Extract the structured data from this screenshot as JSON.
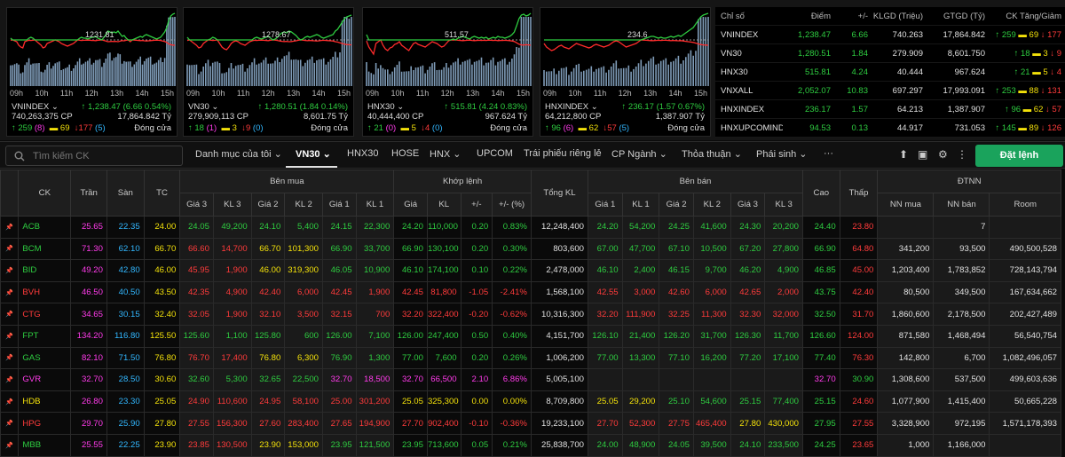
{
  "charts": [
    {
      "name": "VNINDEX",
      "ref_label": "1231.81",
      "line_color": "#ff2b2b",
      "points": [
        34,
        36,
        37,
        38,
        42,
        44,
        45,
        38,
        37,
        34,
        33,
        34,
        36,
        38,
        40,
        42,
        45,
        44,
        40,
        39,
        38,
        37,
        36,
        37,
        38,
        40,
        41,
        42,
        43,
        42,
        41,
        40,
        38,
        36,
        34,
        33,
        34,
        34,
        35,
        34,
        33,
        33,
        32,
        34,
        35,
        36,
        33,
        30,
        26,
        27,
        28,
        27,
        28,
        26,
        29,
        32,
        31,
        34,
        36,
        38,
        36,
        35,
        34,
        33,
        32,
        33,
        31,
        30,
        31,
        32,
        33,
        34,
        35,
        34,
        33,
        30,
        27,
        22,
        14,
        9,
        7,
        6
      ],
      "index": "VNINDEX",
      "vol": "740,263,375 CP",
      "change": "1,238.47 (6.66 0.54%)",
      "value": "17,864.842 Tỷ",
      "up": "259",
      "up_c": "(8)",
      "ref": "69",
      "down": "177",
      "down_c": "(5)",
      "status": "Đóng cửa"
    },
    {
      "name": "VN30",
      "ref_label": "1278.67",
      "line_color": "#ff2b2b",
      "points": [
        33,
        36,
        38,
        40,
        42,
        45,
        44,
        40,
        38,
        36,
        35,
        33,
        34,
        36,
        40,
        44,
        46,
        47,
        44,
        40,
        38,
        37,
        38,
        40,
        41,
        42,
        40,
        38,
        37,
        34,
        33,
        34,
        35,
        34,
        33,
        32,
        34,
        36,
        35,
        33,
        30,
        28,
        27,
        28,
        26,
        27,
        29,
        31,
        34,
        36,
        35,
        33,
        32,
        33,
        32,
        31,
        30,
        31,
        33,
        34,
        33,
        32,
        31,
        30,
        26,
        24,
        20,
        16,
        12,
        10,
        9,
        8
      ],
      "index": "VN30",
      "vol": "279,909,113 CP",
      "change": "1,280.51 (1.84 0.14%)",
      "value": "8,601.75 Tỷ",
      "up": "18",
      "up_c": "(1)",
      "ref": "3",
      "down": "9",
      "down_c": "(0)",
      "status": "Đóng cửa"
    },
    {
      "name": "HNX30",
      "ref_label": "511.57",
      "line_color": "#ff2b2b",
      "points": [
        30,
        44,
        48,
        52,
        40,
        38,
        36,
        42,
        46,
        48,
        45,
        44,
        41,
        40,
        38,
        42,
        44,
        46,
        48,
        44,
        40,
        39,
        41,
        42,
        43,
        44,
        42,
        40,
        38,
        39,
        40,
        42,
        44,
        43,
        40,
        37,
        36,
        35,
        36,
        34,
        33,
        32,
        33,
        34,
        35,
        33,
        32,
        33,
        34,
        33,
        34,
        33,
        35,
        34,
        33,
        34,
        32,
        33,
        33,
        34,
        33,
        32,
        30,
        27,
        20,
        12,
        8,
        7,
        9,
        8,
        6
      ],
      "index": "HNX30",
      "vol": "40,444,400 CP",
      "change": "515.81 (4.24 0.83%)",
      "value": "967.624 Tỷ",
      "up": "21",
      "up_c": "(0)",
      "ref": "5",
      "down": "4",
      "down_c": "(0)",
      "status": "Đóng cửa"
    },
    {
      "name": "HNXINDEX",
      "ref_label": "234.6",
      "line_color": "#ff2b2b",
      "points": [
        40,
        44,
        46,
        48,
        47,
        45,
        43,
        42,
        44,
        45,
        46,
        44,
        42,
        40,
        41,
        42,
        43,
        44,
        45,
        44,
        42,
        41,
        42,
        43,
        44,
        43,
        42,
        40,
        38,
        37,
        38,
        40,
        42,
        44,
        43,
        42,
        41,
        40,
        38,
        36,
        35,
        34,
        33,
        32,
        32,
        33,
        34,
        33,
        34,
        34,
        33,
        32,
        33,
        32,
        31,
        32,
        30,
        28,
        26,
        24,
        22,
        18,
        14,
        10,
        8,
        7,
        6
      ],
      "index": "HNXINDEX",
      "vol": "64,212,800 CP",
      "change": "236.17 (1.57 0.67%)",
      "value": "1,387.907 Tỷ",
      "up": "96",
      "up_c": "(6)",
      "ref": "62",
      "down": "57",
      "down_c": "(5)",
      "status": "Đóng cửa"
    }
  ],
  "time_ticks": [
    "09h",
    "10h",
    "11h",
    "12h",
    "13h",
    "14h",
    "15h"
  ],
  "index_table": {
    "headers": {
      "name": "Chỉ số",
      "point": "Điểm",
      "change": "+/-",
      "vol": "KLGD (Triệu)",
      "value": "GTGD (Tỷ)",
      "updown": "CK Tăng/Giảm"
    },
    "rows": [
      {
        "name": "VNINDEX",
        "point": "1,238.47",
        "change": "6.66",
        "vol": "740.263",
        "value": "17,864.842",
        "up": "259",
        "ref": "69",
        "down": "177"
      },
      {
        "name": "VN30",
        "point": "1,280.51",
        "change": "1.84",
        "vol": "279.909",
        "value": "8,601.750",
        "up": "18",
        "ref": "3",
        "down": "9"
      },
      {
        "name": "HNX30",
        "point": "515.81",
        "change": "4.24",
        "vol": "40.444",
        "value": "967.624",
        "up": "21",
        "ref": "5",
        "down": "4"
      },
      {
        "name": "VNXALL",
        "point": "2,052.07",
        "change": "10.83",
        "vol": "697.297",
        "value": "17,993.091",
        "up": "253",
        "ref": "88",
        "down": "131"
      },
      {
        "name": "HNXINDEX",
        "point": "236.17",
        "change": "1.57",
        "vol": "64.213",
        "value": "1,387.907",
        "up": "96",
        "ref": "62",
        "down": "57"
      },
      {
        "name": "HNXUPCOMINDEX",
        "point": "94.53",
        "change": "0.13",
        "vol": "44.917",
        "value": "731.053",
        "up": "145",
        "ref": "89",
        "down": "126"
      }
    ]
  },
  "toolbar": {
    "search_placeholder": "Tìm kiếm CK",
    "tabs": [
      "Danh mục của tôi",
      "VN30",
      "HNX30",
      "HOSE",
      "HNX",
      "UPCOM",
      "Trái phiếu riêng lẻ",
      "CP Ngành",
      "Thỏa thuận",
      "Phái sinh",
      "···"
    ],
    "order_label": "Đặt lệnh"
  },
  "grid_headers": {
    "ck": "CK",
    "tran": "Trần",
    "san": "Sàn",
    "tc": "TC",
    "benmua": "Bên mua",
    "khop": "Khớp lệnh",
    "tongkl": "Tổng KL",
    "benban": "Bên bán",
    "cao": "Cao",
    "thap": "Thấp",
    "dtnn": "ĐTNN",
    "sub": [
      "Giá 3",
      "KL 3",
      "Giá 2",
      "KL 2",
      "Giá 1",
      "KL 1",
      "Giá",
      "KL",
      "+/-",
      "+/- (%)",
      "Giá 1",
      "KL 1",
      "Giá 2",
      "KL 2",
      "Giá 3",
      "KL 3",
      "NN mua",
      "NN bán",
      "Room"
    ]
  },
  "rows": [
    [
      "ACB",
      "25.65",
      "22.35",
      "24.00",
      "24.05",
      "49,200",
      "24.10",
      "5,400",
      "24.15",
      "22,300",
      "24.20",
      "110,000",
      "0.20",
      "0.83%",
      "12,248,400",
      "24.20",
      "54,200",
      "24.25",
      "41,600",
      "24.30",
      "20,200",
      "24.40",
      "23.80",
      "",
      "7",
      ""
    ],
    [
      "BCM",
      "71.30",
      "62.10",
      "66.70",
      "66.60",
      "14,700",
      "66.70",
      "101,300",
      "66.90",
      "33,700",
      "66.90",
      "130,100",
      "0.20",
      "0.30%",
      "803,600",
      "67.00",
      "47,700",
      "67.10",
      "10,500",
      "67.20",
      "27,800",
      "66.90",
      "64.80",
      "341,200",
      "93,500",
      "490,500,528"
    ],
    [
      "BID",
      "49.20",
      "42.80",
      "46.00",
      "45.95",
      "1,900",
      "46.00",
      "319,300",
      "46.05",
      "10,900",
      "46.10",
      "174,100",
      "0.10",
      "0.22%",
      "2,478,000",
      "46.10",
      "2,400",
      "46.15",
      "9,700",
      "46.20",
      "4,900",
      "46.85",
      "45.00",
      "1,203,400",
      "1,783,852",
      "728,143,794"
    ],
    [
      "BVH",
      "46.50",
      "40.50",
      "43.50",
      "42.35",
      "4,900",
      "42.40",
      "6,000",
      "42.45",
      "1,900",
      "42.45",
      "81,800",
      "-1.05",
      "-2.41%",
      "1,568,100",
      "42.55",
      "3,000",
      "42.60",
      "6,000",
      "42.65",
      "2,000",
      "43.75",
      "42.40",
      "80,500",
      "349,500",
      "167,634,662"
    ],
    [
      "CTG",
      "34.65",
      "30.15",
      "32.40",
      "32.05",
      "1,900",
      "32.10",
      "3,500",
      "32.15",
      "700",
      "32.20",
      "322,400",
      "-0.20",
      "-0.62%",
      "10,316,300",
      "32.20",
      "111,900",
      "32.25",
      "11,300",
      "32.30",
      "32,000",
      "32.50",
      "31.70",
      "1,860,600",
      "2,178,500",
      "202,427,489"
    ],
    [
      "FPT",
      "134.20",
      "116.80",
      "125.50",
      "125.60",
      "1,100",
      "125.80",
      "600",
      "126.00",
      "7,100",
      "126.00",
      "247,400",
      "0.50",
      "0.40%",
      "4,151,700",
      "126.10",
      "21,400",
      "126.20",
      "31,700",
      "126.30",
      "11,700",
      "126.60",
      "124.00",
      "871,580",
      "1,468,494",
      "56,540,754"
    ],
    [
      "GAS",
      "82.10",
      "71.50",
      "76.80",
      "76.70",
      "17,400",
      "76.80",
      "6,300",
      "76.90",
      "1,300",
      "77.00",
      "7,600",
      "0.20",
      "0.26%",
      "1,006,200",
      "77.00",
      "13,300",
      "77.10",
      "16,200",
      "77.20",
      "17,100",
      "77.40",
      "76.30",
      "142,800",
      "6,700",
      "1,082,496,057"
    ],
    [
      "GVR",
      "32.70",
      "28.50",
      "30.60",
      "32.60",
      "5,300",
      "32.65",
      "22,500",
      "32.70",
      "18,500",
      "32.70",
      "66,500",
      "2.10",
      "6.86%",
      "5,005,100",
      "",
      "",
      "",
      "",
      "",
      "",
      "32.70",
      "30.90",
      "1,308,600",
      "537,500",
      "499,603,636"
    ],
    [
      "HDB",
      "26.80",
      "23.30",
      "25.05",
      "24.90",
      "110,600",
      "24.95",
      "58,100",
      "25.00",
      "301,200",
      "25.05",
      "325,300",
      "0.00",
      "0.00%",
      "8,709,800",
      "25.05",
      "29,200",
      "25.10",
      "54,600",
      "25.15",
      "77,400",
      "25.15",
      "24.60",
      "1,077,900",
      "1,415,400",
      "50,665,228"
    ],
    [
      "HPG",
      "29.70",
      "25.90",
      "27.80",
      "27.55",
      "156,300",
      "27.60",
      "283,400",
      "27.65",
      "194,900",
      "27.70",
      "902,400",
      "-0.10",
      "-0.36%",
      "19,233,100",
      "27.70",
      "52,300",
      "27.75",
      "465,400",
      "27.80",
      "430,000",
      "27.95",
      "27.55",
      "3,328,900",
      "972,195",
      "1,571,178,393"
    ],
    [
      "MBB",
      "25.55",
      "22.25",
      "23.90",
      "23.85",
      "130,500",
      "23.90",
      "153,000",
      "23.95",
      "121,500",
      "23.95",
      "713,600",
      "0.05",
      "0.21%",
      "25,838,700",
      "24.00",
      "48,900",
      "24.05",
      "39,500",
      "24.10",
      "233,500",
      "24.25",
      "23.65",
      "1,000",
      "1,166,000",
      ""
    ]
  ],
  "row_colors": [
    [
      "g",
      "g",
      "g",
      "g",
      "g",
      "g",
      "g",
      "g",
      "g",
      "g",
      "g",
      "g",
      "g",
      "g",
      "rd"
    ],
    [
      "rd",
      "rd",
      "y",
      "y",
      "g",
      "g",
      "g",
      "g",
      "g",
      "g",
      "g",
      "g",
      "g",
      "g",
      "g",
      "g",
      "g",
      "rd"
    ],
    [
      "y",
      "y",
      "y",
      "y",
      "g",
      "g",
      "g",
      "g",
      "g",
      "g",
      "g",
      "g",
      "g",
      "g",
      "g",
      "g",
      "g",
      "g"
    ],
    [
      "rd",
      "rd",
      "rd",
      "rd",
      "rd",
      "rd",
      "rd",
      "rd",
      "rd",
      "rd",
      "rd",
      "rd",
      "rd",
      "rd",
      "rd",
      "rd",
      "rd",
      "rd"
    ],
    [
      "rd",
      "rd",
      "rd",
      "rd",
      "rd",
      "rd",
      "rd",
      "rd",
      "rd",
      "rd",
      "rd",
      "rd",
      "rd",
      "rd",
      "rd",
      "rd",
      "rd",
      "rd"
    ],
    [
      "g",
      "g",
      "g",
      "g",
      "g",
      "g",
      "g",
      "g",
      "g",
      "g",
      "g",
      "g",
      "g",
      "g",
      "g",
      "g",
      "g",
      "rd"
    ],
    [
      "rd",
      "rd",
      "y",
      "y",
      "g",
      "g",
      "g",
      "g",
      "g",
      "g",
      "g",
      "g",
      "g",
      "g",
      "g",
      "g",
      "g",
      "rd"
    ],
    [
      "g",
      "g",
      "g",
      "g",
      "m",
      "m",
      "m",
      "m",
      "m",
      "m",
      "",
      "",
      "",
      "",
      "",
      "",
      "m",
      "g"
    ],
    [
      "rd",
      "rd",
      "rd",
      "rd",
      "rd",
      "rd",
      "y",
      "y",
      "y",
      "y",
      "y",
      "y",
      "g",
      "g",
      "g",
      "g",
      "g",
      "rd"
    ],
    [
      "rd",
      "rd",
      "rd",
      "rd",
      "rd",
      "rd",
      "rd",
      "rd",
      "rd",
      "rd",
      "rd",
      "rd",
      "rd",
      "rd",
      "y",
      "y",
      "g",
      "rd"
    ],
    [
      "rd",
      "rd",
      "y",
      "y",
      "g",
      "g",
      "g",
      "g",
      "g",
      "g",
      "g",
      "g",
      "g",
      "g",
      "g",
      "g",
      "g",
      "rd"
    ]
  ],
  "colors": {
    "up": "#2ecc40",
    "down": "#ff3b3b",
    "ref": "#f3e10a",
    "ceil": "#ff3bea",
    "floor": "#32b7ff"
  }
}
